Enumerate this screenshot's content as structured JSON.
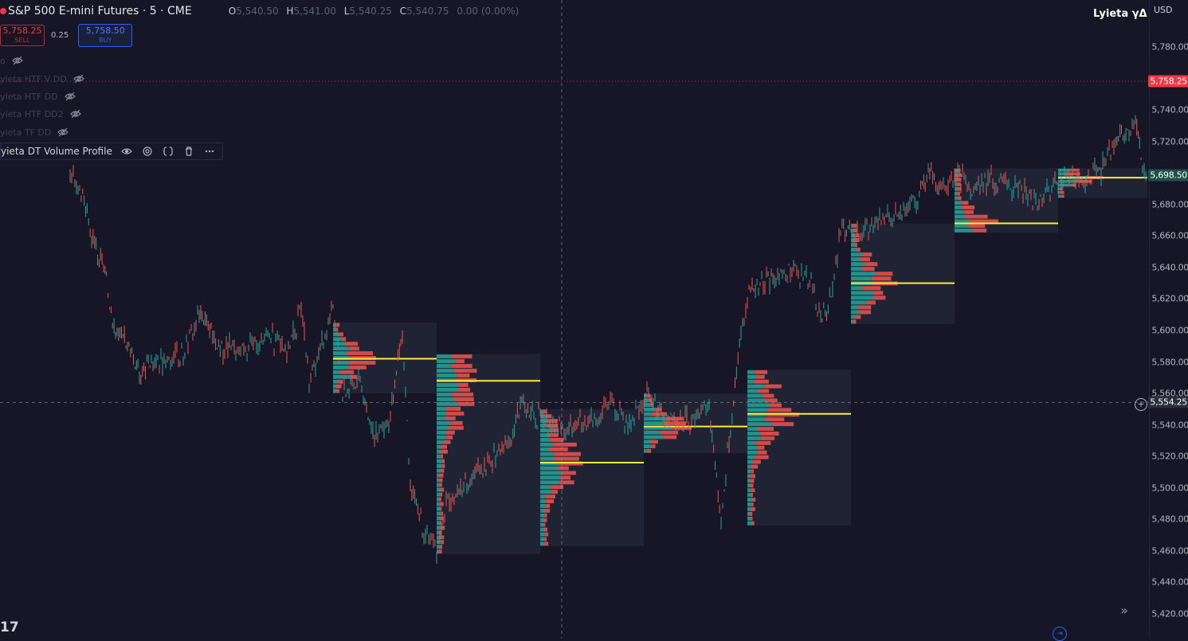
{
  "header": {
    "symbol_title": "S&P 500 E-mini Futures · 5 · CME",
    "ohlc": [
      {
        "k": "O",
        "v": "5,540.50"
      },
      {
        "k": "H",
        "v": "5,541.00"
      },
      {
        "k": "L",
        "v": "5,540.25"
      },
      {
        "k": "C",
        "v": "5,540.75"
      }
    ],
    "change": "0.00 (0.00%)",
    "brand": "Lyieta γΔ",
    "currency": "USD"
  },
  "trade": {
    "sell_price": "5,758.25",
    "sell_label": "SELL",
    "spread": "0.25",
    "buy_price": "5,758.50",
    "buy_label": "BUY"
  },
  "indicators": [
    {
      "label": "o",
      "icon": "eye-off-icon"
    },
    {
      "label": "yieta HTF V DD",
      "icon": "eye-off-icon"
    },
    {
      "label": "yieta HTF DD",
      "icon": "eye-off-icon"
    },
    {
      "label": "yieta HTF DD2",
      "icon": "eye-off-icon"
    },
    {
      "label": "yieta TF DD",
      "icon": "eye-off-icon"
    }
  ],
  "active_indicator": {
    "label": "yieta DT Volume Profile",
    "buttons": [
      "eye-icon",
      "settings-icon",
      "source-code-icon",
      "trash-icon",
      "more-icon"
    ]
  },
  "price_axis": {
    "ticks": [
      "5,780.00",
      "5,740.00",
      "5,720.00",
      "5,700.00",
      "5,680.00",
      "5,660.00",
      "5,640.00",
      "5,620.00",
      "5,600.00",
      "5,580.00",
      "5,560.00",
      "5,540.00",
      "5,520.00",
      "5,500.00",
      "5,480.00",
      "5,460.00",
      "5,440.00",
      "5,420.00"
    ],
    "last_price_tag": "5,758.25",
    "current_tag": "5,698.50",
    "crosshair_tag": "5,554.25"
  },
  "colors": {
    "up": "#26a69a",
    "down": "#ef5350",
    "poc": "#ffeb3b",
    "bg": "#161626"
  },
  "logo_text": "17",
  "expand_icon": "double-chevron-right-icon",
  "chart_data": {
    "type": "candlestick-with-volume-profile",
    "ylim": [
      5410,
      5800
    ],
    "price_path": [
      [
        88,
        5700
      ],
      [
        100,
        5690
      ],
      [
        115,
        5660
      ],
      [
        130,
        5640
      ],
      [
        145,
        5600
      ],
      [
        160,
        5590
      ],
      [
        175,
        5575
      ],
      [
        190,
        5580
      ],
      [
        210,
        5582
      ],
      [
        230,
        5585
      ],
      [
        250,
        5610
      ],
      [
        265,
        5596
      ],
      [
        280,
        5588
      ],
      [
        300,
        5590
      ],
      [
        320,
        5592
      ],
      [
        340,
        5596
      ],
      [
        360,
        5588
      ],
      [
        378,
        5612
      ],
      [
        388,
        5568
      ],
      [
        400,
        5582
      ],
      [
        418,
        5618
      ],
      [
        430,
        5560
      ],
      [
        450,
        5570
      ],
      [
        470,
        5530
      ],
      [
        490,
        5545
      ],
      [
        505,
        5600
      ],
      [
        515,
        5500
      ],
      [
        530,
        5476
      ],
      [
        548,
        5462
      ],
      [
        560,
        5490
      ],
      [
        580,
        5500
      ],
      [
        600,
        5510
      ],
      [
        620,
        5520
      ],
      [
        640,
        5530
      ],
      [
        655,
        5555
      ],
      [
        670,
        5545
      ],
      [
        690,
        5540
      ],
      [
        710,
        5535
      ],
      [
        730,
        5540
      ],
      [
        750,
        5545
      ],
      [
        768,
        5555
      ],
      [
        790,
        5540
      ],
      [
        810,
        5560
      ],
      [
        830,
        5548
      ],
      [
        850,
        5540
      ],
      [
        870,
        5545
      ],
      [
        890,
        5550
      ],
      [
        905,
        5478
      ],
      [
        915,
        5530
      ],
      [
        930,
        5600
      ],
      [
        940,
        5625
      ],
      [
        960,
        5630
      ],
      [
        980,
        5635
      ],
      [
        1000,
        5638
      ],
      [
        1020,
        5630
      ],
      [
        1030,
        5605
      ],
      [
        1045,
        5625
      ],
      [
        1055,
        5665
      ],
      [
        1070,
        5660
      ],
      [
        1090,
        5665
      ],
      [
        1110,
        5672
      ],
      [
        1130,
        5675
      ],
      [
        1150,
        5680
      ],
      [
        1165,
        5700
      ],
      [
        1180,
        5690
      ],
      [
        1200,
        5700
      ],
      [
        1220,
        5690
      ],
      [
        1240,
        5695
      ],
      [
        1260,
        5693
      ],
      [
        1280,
        5690
      ],
      [
        1300,
        5680
      ],
      [
        1320,
        5690
      ],
      [
        1340,
        5698
      ],
      [
        1360,
        5695
      ],
      [
        1380,
        5700
      ],
      [
        1400,
        5720
      ],
      [
        1415,
        5725
      ],
      [
        1425,
        5735
      ],
      [
        1432,
        5708
      ],
      [
        1440,
        5695
      ]
    ],
    "profiles": [
      {
        "x0": 418,
        "x1": 548,
        "top": 5605,
        "bottom": 5560,
        "poc": 5582
      },
      {
        "x0": 548,
        "x1": 678,
        "top": 5585,
        "bottom": 5458,
        "poc": 5568
      },
      {
        "x0": 678,
        "x1": 808,
        "top": 5550,
        "bottom": 5463,
        "poc": 5516
      },
      {
        "x0": 808,
        "x1": 938,
        "top": 5560,
        "bottom": 5522,
        "poc": 5539
      },
      {
        "x0": 938,
        "x1": 1068,
        "top": 5575,
        "bottom": 5476,
        "poc": 5547
      },
      {
        "x0": 1068,
        "x1": 1198,
        "top": 5668,
        "bottom": 5604,
        "poc": 5630
      },
      {
        "x0": 1198,
        "x1": 1328,
        "top": 5703,
        "bottom": 5662,
        "poc": 5668
      },
      {
        "x0": 1328,
        "x1": 1440,
        "top": 5703,
        "bottom": 5684,
        "poc": 5697
      }
    ],
    "crosshair": {
      "x": 705,
      "price": 5554.25
    },
    "last_price": 5758.25
  }
}
